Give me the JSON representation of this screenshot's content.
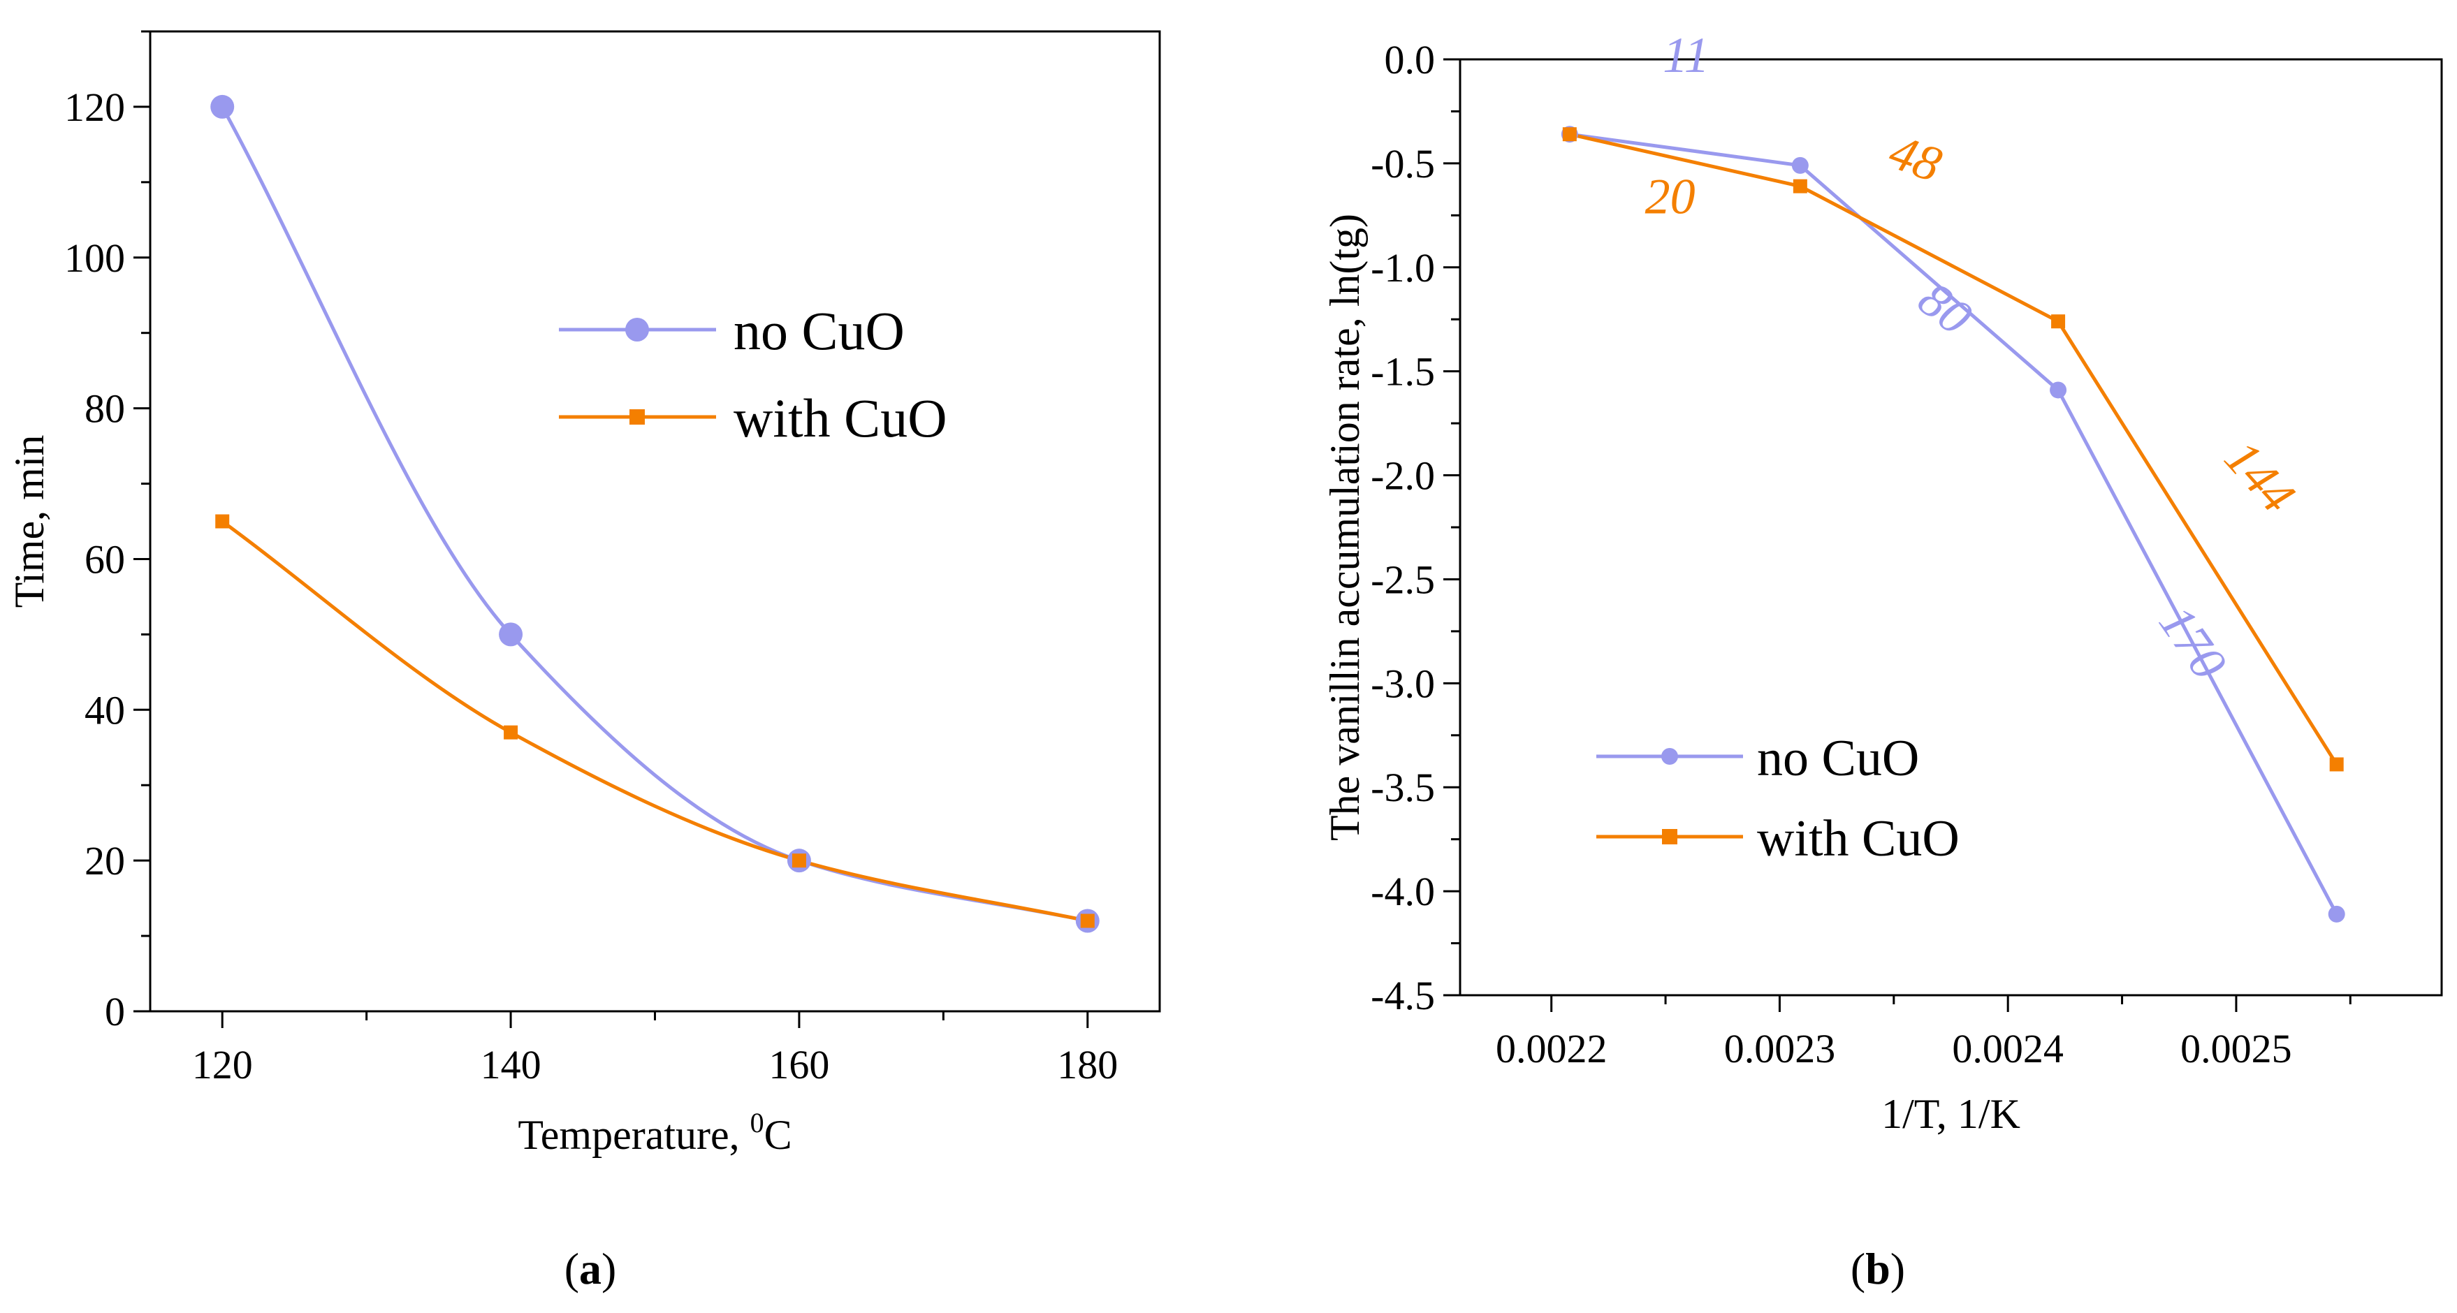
{
  "colors": {
    "no_cuo": "#9999EE",
    "with_cuo": "#F47F00",
    "axis": "#000000"
  },
  "chart_data": [
    {
      "id": "a",
      "type": "line",
      "panel_label": "a",
      "xlabel": "Temperature, ",
      "xlabel_sup": "0",
      "xlabel_unit": "C",
      "ylabel": "Time, min",
      "xlim": [
        115,
        185
      ],
      "ylim": [
        0,
        130
      ],
      "xticks": [
        120,
        140,
        160,
        180
      ],
      "xtick_labels": [
        "120",
        "140",
        "160",
        "180"
      ],
      "xminor": [
        130,
        150,
        170
      ],
      "yticks": [
        0,
        20,
        40,
        60,
        80,
        100,
        120
      ],
      "ytick_labels": [
        "0",
        "20",
        "40",
        "60",
        "80",
        "100",
        "120"
      ],
      "yminor": [
        10,
        30,
        50,
        70,
        90,
        110,
        130
      ],
      "smooth": true,
      "legend_position": "center-right",
      "x": [
        120,
        140,
        160,
        180
      ],
      "series": [
        {
          "name": "no CuO",
          "color": "#9999EE",
          "marker": "circle",
          "values": [
            120,
            50,
            20,
            12
          ]
        },
        {
          "name": "with CuO",
          "color": "#F47F00",
          "marker": "square",
          "values": [
            65,
            37,
            20,
            12
          ]
        }
      ]
    },
    {
      "id": "b",
      "type": "line",
      "panel_label": "b",
      "xlabel": "1/T, 1/K",
      "ylabel": "The vanillin accumulation rate, ln(tg)",
      "xlim": [
        0.00216,
        0.00259
      ],
      "ylim": [
        -4.5,
        0.0
      ],
      "xticks": [
        0.0022,
        0.0023,
        0.0024,
        0.0025
      ],
      "xtick_labels": [
        "0.0022",
        "0.0023",
        "0.0024",
        "0.0025"
      ],
      "xminor": [
        0.00225,
        0.00235,
        0.00245,
        0.00255
      ],
      "yticks": [
        0.0,
        -0.5,
        -1.0,
        -1.5,
        -2.0,
        -2.5,
        -3.0,
        -3.5,
        -4.0,
        -4.5
      ],
      "ytick_labels": [
        "0.0",
        "-0.5",
        "-1.0",
        "-1.5",
        "-2.0",
        "-2.5",
        "-3.0",
        "-3.5",
        "-4.0",
        "-4.5"
      ],
      "yminor": [
        -0.25,
        -0.75,
        -1.25,
        -1.75,
        -2.25,
        -2.75,
        -3.25,
        -3.75,
        -4.25
      ],
      "smooth": false,
      "legend_position": "bottom-left",
      "series": [
        {
          "name": "no CuO",
          "color": "#9999EE",
          "marker": "circle",
          "x": [
            0.002208,
            0.002309,
            0.002422,
            0.002544
          ],
          "values": [
            -0.36,
            -0.51,
            -1.59,
            -4.11
          ]
        },
        {
          "name": "with CuO",
          "color": "#F47F00",
          "marker": "square",
          "x": [
            0.002208,
            0.002309,
            0.002422,
            0.002544
          ],
          "values": [
            -0.36,
            -0.61,
            -1.26,
            -3.39
          ]
        }
      ],
      "annotations": [
        {
          "text": "11",
          "series": "no CuO",
          "x": 0.002259,
          "y": -0.06,
          "rotation": 0
        },
        {
          "text": "20",
          "series": "with CuO",
          "x": 0.002252,
          "y": -0.74,
          "rotation": 0
        },
        {
          "text": "48",
          "series": "with CuO",
          "x": 0.002357,
          "y": -0.55,
          "rotation": 20
        },
        {
          "text": "80",
          "series": "no CuO",
          "x": 0.002368,
          "y": -1.26,
          "rotation": 38
        },
        {
          "text": "144",
          "series": "with CuO",
          "x": 0.002505,
          "y": -2.06,
          "rotation": 48
        },
        {
          "text": "170",
          "series": "no CuO",
          "x": 0.002475,
          "y": -2.85,
          "rotation": 55
        }
      ]
    }
  ]
}
